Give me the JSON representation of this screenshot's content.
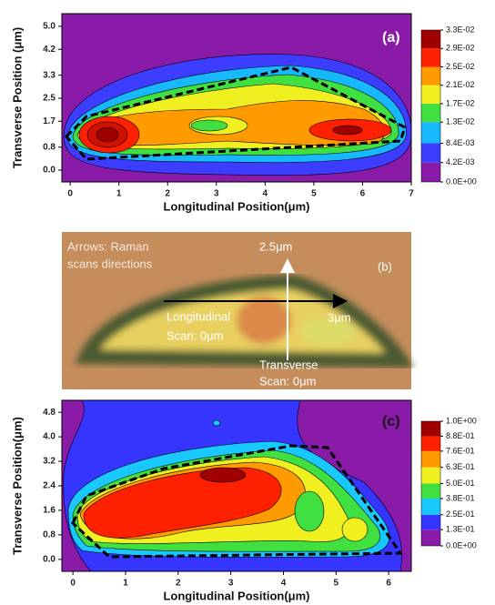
{
  "chart_data": [
    {
      "type": "contour",
      "panel_label": "(a)",
      "x_label": "Longitudinal Position(μm)",
      "y_label": "Transverse Position (μm)",
      "xlim": [
        -0.17,
        7
      ],
      "ylim": [
        -0.41,
        5.44
      ],
      "xticks": [
        0,
        1,
        2,
        3,
        4,
        5,
        6,
        7
      ],
      "yticks": [
        {
          "value": 0,
          "label": "0.0"
        },
        {
          "value": 0.8,
          "label": "0.8"
        },
        {
          "value": 1.7,
          "label": "1.7"
        },
        {
          "value": 2.5,
          "label": "2.5"
        },
        {
          "value": 3.3,
          "label": "3.3"
        },
        {
          "value": 4.2,
          "label": "4.2"
        },
        {
          "value": 5.0,
          "label": "5.0"
        }
      ],
      "colorbar": {
        "ticks": [
          {
            "value": 0,
            "label": "0.0E+00"
          },
          {
            "value": 0.0042,
            "label": "4.2E-03"
          },
          {
            "value": 0.0084,
            "label": "8.4E-03"
          },
          {
            "value": 0.013,
            "label": "1.3E-02"
          },
          {
            "value": 0.017,
            "label": "1.7E-02"
          },
          {
            "value": 0.021,
            "label": "2.1E-02"
          },
          {
            "value": 0.025,
            "label": "2.5E-02"
          },
          {
            "value": 0.029,
            "label": "2.9E-02"
          },
          {
            "value": 0.033,
            "label": "3.3E-02"
          }
        ],
        "colors": [
          "#8a1aa8",
          "#3d3dff",
          "#18b8ff",
          "#40e040",
          "#f0f020",
          "#ff9a00",
          "#ff2000",
          "#a00000"
        ]
      }
    },
    {
      "type": "image",
      "panel_label": "(b)",
      "note": [
        "Arrows: Raman",
        "scans directions"
      ],
      "top_label": "2.5μm",
      "right_label": "3μm",
      "longitudinal_label": [
        "Longitudinal",
        "Scan: 0μm"
      ],
      "transverse_label": [
        "Transverse",
        "Scan: 0μm"
      ]
    },
    {
      "type": "contour",
      "panel_label": "(c)",
      "x_label": "Longitudinal Position(μm)",
      "y_label": "Transverse Position(μm)",
      "xlim": [
        -0.21,
        6.43
      ],
      "ylim": [
        -0.39,
        5.19
      ],
      "xticks": [
        0,
        1,
        2,
        3,
        4,
        5,
        6
      ],
      "yticks": [
        {
          "value": 0,
          "label": "0.0"
        },
        {
          "value": 0.8,
          "label": "0.8"
        },
        {
          "value": 1.6,
          "label": "1.6"
        },
        {
          "value": 2.4,
          "label": "2.4"
        },
        {
          "value": 3.2,
          "label": "3.2"
        },
        {
          "value": 4.0,
          "label": "4.0"
        },
        {
          "value": 4.8,
          "label": "4.8"
        }
      ],
      "colorbar": {
        "ticks": [
          {
            "value": 0,
            "label": "0.0E+00"
          },
          {
            "value": 0.13,
            "label": "1.3E-01"
          },
          {
            "value": 0.25,
            "label": "2.5E-01"
          },
          {
            "value": 0.38,
            "label": "3.8E-01"
          },
          {
            "value": 0.5,
            "label": "5.0E-01"
          },
          {
            "value": 0.63,
            "label": "6.3E-01"
          },
          {
            "value": 0.76,
            "label": "7.6E-01"
          },
          {
            "value": 0.88,
            "label": "8.8E-01"
          },
          {
            "value": 1.0,
            "label": "1.0E+00"
          }
        ],
        "colors": [
          "#8a1aa8",
          "#3535ff",
          "#18c8ff",
          "#40e040",
          "#f0f020",
          "#ff9a00",
          "#ff2000",
          "#a00000"
        ]
      }
    }
  ]
}
